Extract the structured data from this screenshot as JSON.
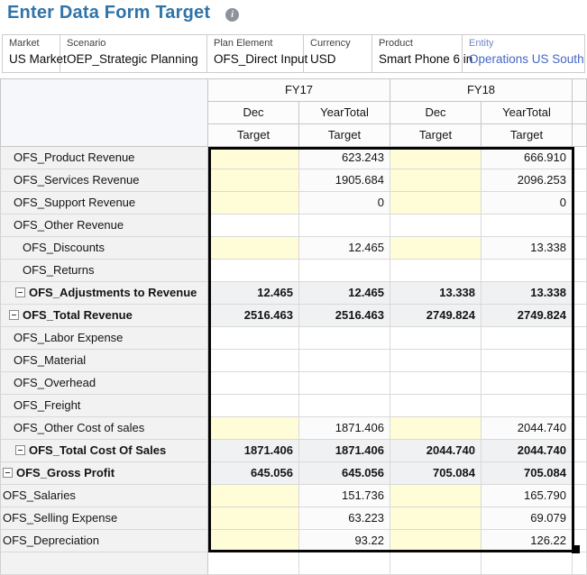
{
  "header": {
    "title": "Enter Data Form Target",
    "info_glyph": "i"
  },
  "pov": {
    "items": [
      {
        "dimension": "Market",
        "member": "US Market",
        "link": false
      },
      {
        "dimension": "Scenario",
        "member": "OEP_Strategic Planning",
        "link": false
      },
      {
        "dimension": "Plan Element",
        "member": "OFS_Direct Input",
        "link": false
      },
      {
        "dimension": "Currency",
        "member": "USD",
        "link": false
      },
      {
        "dimension": "Product",
        "member": "Smart Phone 6 in",
        "link": false
      },
      {
        "dimension": "Entity",
        "member": "Operations US South",
        "link": true
      }
    ]
  },
  "grid": {
    "year_headers": [
      {
        "label": "FY17",
        "span": 2
      },
      {
        "label": "FY18",
        "span": 2
      }
    ],
    "period_headers": [
      "Dec",
      "YearTotal",
      "Dec",
      "YearTotal"
    ],
    "variable_headers": [
      "Target",
      "Target",
      "Target",
      "Target"
    ],
    "rows": [
      {
        "label": "OFS_Product Revenue",
        "indent": 14,
        "icon": false,
        "bold": false,
        "cells": [
          {
            "v": "",
            "bg": "y"
          },
          {
            "v": "623.243",
            "bg": "p"
          },
          {
            "v": "",
            "bg": "y"
          },
          {
            "v": "666.910",
            "bg": "p"
          }
        ]
      },
      {
        "label": "OFS_Services Revenue",
        "indent": 14,
        "icon": false,
        "bold": false,
        "cells": [
          {
            "v": "",
            "bg": "y"
          },
          {
            "v": "1905.684",
            "bg": "p"
          },
          {
            "v": "",
            "bg": "y"
          },
          {
            "v": "2096.253",
            "bg": "p"
          }
        ]
      },
      {
        "label": "OFS_Support Revenue",
        "indent": 14,
        "icon": false,
        "bold": false,
        "cells": [
          {
            "v": "",
            "bg": "y"
          },
          {
            "v": "0",
            "bg": "p"
          },
          {
            "v": "",
            "bg": "y"
          },
          {
            "v": "0",
            "bg": "p"
          }
        ]
      },
      {
        "label": "OFS_Other Revenue",
        "indent": 14,
        "icon": false,
        "bold": false,
        "cells": [
          {
            "v": "",
            "bg": "w"
          },
          {
            "v": "",
            "bg": "w"
          },
          {
            "v": "",
            "bg": "w"
          },
          {
            "v": "",
            "bg": "w"
          }
        ]
      },
      {
        "label": "OFS_Discounts",
        "indent": 24,
        "icon": false,
        "bold": false,
        "cells": [
          {
            "v": "",
            "bg": "y"
          },
          {
            "v": "12.465",
            "bg": "p"
          },
          {
            "v": "",
            "bg": "y"
          },
          {
            "v": "13.338",
            "bg": "p"
          }
        ]
      },
      {
        "label": "OFS_Returns",
        "indent": 24,
        "icon": false,
        "bold": false,
        "cells": [
          {
            "v": "",
            "bg": "w"
          },
          {
            "v": "",
            "bg": "w"
          },
          {
            "v": "",
            "bg": "w"
          },
          {
            "v": "",
            "bg": "w"
          }
        ]
      },
      {
        "label": "OFS_Adjustments to Revenue",
        "indent": 16,
        "icon": true,
        "bold": true,
        "cells": [
          {
            "v": "12.465",
            "bg": "g"
          },
          {
            "v": "12.465",
            "bg": "g"
          },
          {
            "v": "13.338",
            "bg": "g"
          },
          {
            "v": "13.338",
            "bg": "g"
          }
        ]
      },
      {
        "label": "OFS_Total Revenue",
        "indent": 9,
        "icon": true,
        "bold": true,
        "cells": [
          {
            "v": "2516.463",
            "bg": "g"
          },
          {
            "v": "2516.463",
            "bg": "g"
          },
          {
            "v": "2749.824",
            "bg": "g"
          },
          {
            "v": "2749.824",
            "bg": "g"
          }
        ]
      },
      {
        "label": "OFS_Labor Expense",
        "indent": 14,
        "icon": false,
        "bold": false,
        "cells": [
          {
            "v": "",
            "bg": "w"
          },
          {
            "v": "",
            "bg": "w"
          },
          {
            "v": "",
            "bg": "w"
          },
          {
            "v": "",
            "bg": "w"
          }
        ]
      },
      {
        "label": "OFS_Material",
        "indent": 14,
        "icon": false,
        "bold": false,
        "cells": [
          {
            "v": "",
            "bg": "w"
          },
          {
            "v": "",
            "bg": "w"
          },
          {
            "v": "",
            "bg": "w"
          },
          {
            "v": "",
            "bg": "w"
          }
        ]
      },
      {
        "label": "OFS_Overhead",
        "indent": 14,
        "icon": false,
        "bold": false,
        "cells": [
          {
            "v": "",
            "bg": "w"
          },
          {
            "v": "",
            "bg": "w"
          },
          {
            "v": "",
            "bg": "w"
          },
          {
            "v": "",
            "bg": "w"
          }
        ]
      },
      {
        "label": "OFS_Freight",
        "indent": 14,
        "icon": false,
        "bold": false,
        "cells": [
          {
            "v": "",
            "bg": "w"
          },
          {
            "v": "",
            "bg": "w"
          },
          {
            "v": "",
            "bg": "w"
          },
          {
            "v": "",
            "bg": "w"
          }
        ]
      },
      {
        "label": "OFS_Other Cost of sales",
        "indent": 14,
        "icon": false,
        "bold": false,
        "cells": [
          {
            "v": "",
            "bg": "y"
          },
          {
            "v": "1871.406",
            "bg": "p"
          },
          {
            "v": "",
            "bg": "y"
          },
          {
            "v": "2044.740",
            "bg": "p"
          }
        ]
      },
      {
        "label": "OFS_Total Cost Of Sales",
        "indent": 16,
        "icon": true,
        "bold": true,
        "cells": [
          {
            "v": "1871.406",
            "bg": "g"
          },
          {
            "v": "1871.406",
            "bg": "g"
          },
          {
            "v": "2044.740",
            "bg": "g"
          },
          {
            "v": "2044.740",
            "bg": "g"
          }
        ]
      },
      {
        "label": "OFS_Gross Profit",
        "indent": 2,
        "icon": true,
        "bold": true,
        "cells": [
          {
            "v": "645.056",
            "bg": "g"
          },
          {
            "v": "645.056",
            "bg": "g"
          },
          {
            "v": "705.084",
            "bg": "g"
          },
          {
            "v": "705.084",
            "bg": "g"
          }
        ]
      },
      {
        "label": "OFS_Salaries",
        "indent": 2,
        "icon": false,
        "bold": false,
        "cells": [
          {
            "v": "",
            "bg": "y"
          },
          {
            "v": "151.736",
            "bg": "p"
          },
          {
            "v": "",
            "bg": "y"
          },
          {
            "v": "165.790",
            "bg": "p"
          }
        ]
      },
      {
        "label": "OFS_Selling Expense",
        "indent": 2,
        "icon": false,
        "bold": false,
        "cells": [
          {
            "v": "",
            "bg": "y"
          },
          {
            "v": "63.223",
            "bg": "p"
          },
          {
            "v": "",
            "bg": "y"
          },
          {
            "v": "69.079",
            "bg": "p"
          }
        ]
      },
      {
        "label": "OFS_Depreciation",
        "indent": 2,
        "icon": false,
        "bold": false,
        "cells": [
          {
            "v": "",
            "bg": "y"
          },
          {
            "v": "93.22",
            "bg": "p"
          },
          {
            "v": "",
            "bg": "y"
          },
          {
            "v": "126.22",
            "bg": "p"
          }
        ]
      },
      {
        "label": "",
        "indent": 2,
        "icon": false,
        "bold": false,
        "cells": [
          {
            "v": "",
            "bg": "w"
          },
          {
            "v": "",
            "bg": "w"
          },
          {
            "v": "",
            "bg": "w"
          },
          {
            "v": "",
            "bg": "w"
          }
        ]
      }
    ]
  },
  "colors": {
    "title": "#2f74a9",
    "info_bg": "#8d939b",
    "entity_link": "#4467c4",
    "entity_label": "#7186cb",
    "editable_empty": "#fffcd8",
    "readonly_value": "#fbfbfb",
    "total_bg": "#f0f1f3",
    "row_header_bg": "#f2f2f2",
    "corner_bg": "#f5f7fa",
    "selection_border": "#050505"
  }
}
